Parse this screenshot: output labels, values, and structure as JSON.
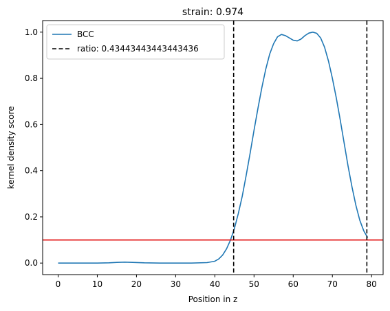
{
  "chart_data": {
    "type": "line",
    "title": "strain: 0.974",
    "xlabel": "Position in z",
    "ylabel": "kernel density score",
    "xlim": [
      -3.95,
      82.95
    ],
    "ylim": [
      -0.05,
      1.05
    ],
    "xticks": [
      0,
      10,
      20,
      30,
      40,
      50,
      60,
      70,
      80
    ],
    "yticks": [
      0.0,
      0.2,
      0.4,
      0.6,
      0.8,
      1.0
    ],
    "xtick_labels": [
      "0",
      "10",
      "20",
      "30",
      "40",
      "50",
      "60",
      "70",
      "80"
    ],
    "ytick_labels": [
      "0.0",
      "0.2",
      "0.4",
      "0.6",
      "0.8",
      "1.0"
    ],
    "grid": false,
    "legend_position": "upper-left",
    "series": [
      {
        "name": "BCC",
        "color": "#1f77b4",
        "style": "solid",
        "x": [
          0,
          5,
          10,
          13,
          15,
          17,
          19,
          22,
          26,
          30,
          34,
          38,
          40,
          41,
          42,
          43,
          44,
          45,
          46,
          47,
          48,
          49,
          50,
          51,
          52,
          53,
          54,
          55,
          56,
          57,
          58,
          59,
          60,
          61,
          62,
          63,
          64,
          65,
          66,
          67,
          68,
          69,
          70,
          71,
          72,
          73,
          74,
          75,
          76,
          77,
          78,
          79
        ],
        "y": [
          0.0,
          0.0,
          0.0,
          0.001,
          0.003,
          0.004,
          0.003,
          0.001,
          0.0,
          0.0,
          0.0,
          0.002,
          0.008,
          0.018,
          0.035,
          0.062,
          0.1,
          0.15,
          0.215,
          0.29,
          0.38,
          0.475,
          0.575,
          0.67,
          0.76,
          0.84,
          0.905,
          0.95,
          0.98,
          0.99,
          0.985,
          0.975,
          0.965,
          0.962,
          0.97,
          0.985,
          0.996,
          1.0,
          0.995,
          0.975,
          0.935,
          0.875,
          0.8,
          0.715,
          0.62,
          0.52,
          0.42,
          0.33,
          0.25,
          0.185,
          0.14,
          0.11
        ]
      }
    ],
    "vlines": [
      {
        "label": "ratio: 0.43443443443443436",
        "x": 44.8,
        "color": "#000000",
        "style": "dashed"
      },
      {
        "label": "",
        "x": 78.8,
        "color": "#000000",
        "style": "dashed"
      }
    ],
    "hline": {
      "y": 0.1,
      "color": "#e00000"
    },
    "legend": [
      {
        "label": "BCC",
        "color": "#1f77b4",
        "style": "solid"
      },
      {
        "label": "ratio: 0.43443443443443436",
        "color": "#000000",
        "style": "dashed"
      }
    ]
  }
}
